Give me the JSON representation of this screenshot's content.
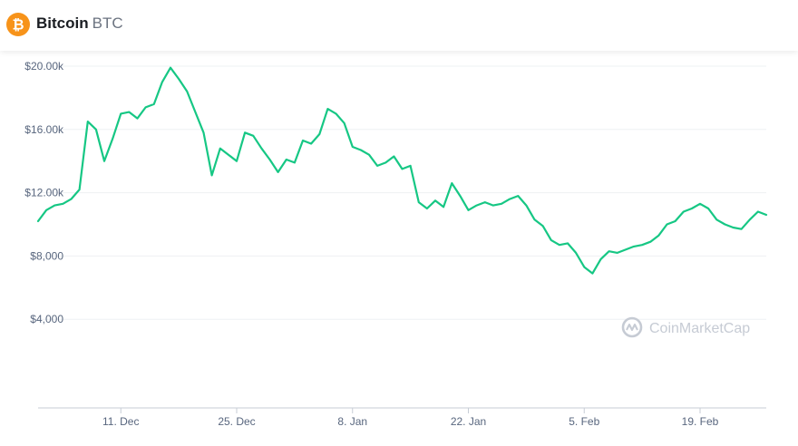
{
  "coin": {
    "name": "Bitcoin",
    "symbol": "BTC",
    "logo_color": "#f7931a",
    "logo_glyph": "₿"
  },
  "watermark": {
    "text": "CoinMarketCap"
  },
  "colors": {
    "line": "#16c784",
    "grid": "#eef0f3",
    "axis_text": "#58667e",
    "watermark": "#c6cbd4"
  },
  "chart_data": {
    "type": "line",
    "title": "",
    "xlabel": "",
    "ylabel": "",
    "ylim": [
      0,
      20000
    ],
    "y_ticks": [
      4000,
      8000,
      12000,
      16000,
      20000
    ],
    "y_tick_labels": [
      "$4,000",
      "$8,000",
      "$12.00k",
      "$16.00k",
      "$20.00k"
    ],
    "x_ticks": [
      "2017-12-11",
      "2017-12-25",
      "2018-01-08",
      "2018-01-22",
      "2018-02-05",
      "2018-02-19"
    ],
    "x_tick_labels": [
      "11. Dec",
      "25. Dec",
      "8. Jan",
      "22. Jan",
      "5. Feb",
      "19. Feb"
    ],
    "grid": "horizontal",
    "series": [
      {
        "x": [
          "2017-12-01",
          "2017-12-02",
          "2017-12-03",
          "2017-12-04",
          "2017-12-05",
          "2017-12-06",
          "2017-12-07",
          "2017-12-08",
          "2017-12-09",
          "2017-12-10",
          "2017-12-11",
          "2017-12-12",
          "2017-12-13",
          "2017-12-14",
          "2017-12-15",
          "2017-12-16",
          "2017-12-17",
          "2017-12-18",
          "2017-12-19",
          "2017-12-20",
          "2017-12-21",
          "2017-12-22",
          "2017-12-23",
          "2017-12-24",
          "2017-12-25",
          "2017-12-26",
          "2017-12-27",
          "2017-12-28",
          "2017-12-29",
          "2017-12-30",
          "2017-12-31",
          "2018-01-01",
          "2018-01-02",
          "2018-01-03",
          "2018-01-04",
          "2018-01-05",
          "2018-01-06",
          "2018-01-07",
          "2018-01-08",
          "2018-01-09",
          "2018-01-10",
          "2018-01-11",
          "2018-01-12",
          "2018-01-13",
          "2018-01-14",
          "2018-01-15",
          "2018-01-16",
          "2018-01-17",
          "2018-01-18",
          "2018-01-19",
          "2018-01-20",
          "2018-01-21",
          "2018-01-22",
          "2018-01-23",
          "2018-01-24",
          "2018-01-25",
          "2018-01-26",
          "2018-01-27",
          "2018-01-28",
          "2018-01-29",
          "2018-01-30",
          "2018-01-31",
          "2018-02-01",
          "2018-02-02",
          "2018-02-03",
          "2018-02-04",
          "2018-02-05",
          "2018-02-06",
          "2018-02-07",
          "2018-02-08",
          "2018-02-09",
          "2018-02-10",
          "2018-02-11",
          "2018-02-12",
          "2018-02-13",
          "2018-02-14",
          "2018-02-15",
          "2018-02-16",
          "2018-02-17",
          "2018-02-18",
          "2018-02-19",
          "2018-02-20",
          "2018-02-21",
          "2018-02-22",
          "2018-02-23",
          "2018-02-24",
          "2018-02-25",
          "2018-02-26",
          "2018-02-27"
        ],
        "values": [
          10200,
          10900,
          11200,
          11300,
          11600,
          12200,
          16500,
          16000,
          14000,
          15400,
          17000,
          17100,
          16700,
          17400,
          17600,
          19000,
          19900,
          19200,
          18400,
          17100,
          15800,
          13100,
          14800,
          14400,
          14000,
          15800,
          15600,
          14800,
          14100,
          13300,
          14100,
          13900,
          15300,
          15100,
          15700,
          17300,
          17000,
          16400,
          14900,
          14700,
          14400,
          13700,
          13900,
          14300,
          13500,
          13700,
          11400,
          11000,
          11500,
          11100,
          12600,
          11800,
          10900,
          11200,
          11400,
          11200,
          11300,
          11600,
          11800,
          11200,
          10300,
          9900,
          9000,
          8700,
          8800,
          8200,
          7300,
          6900,
          7800,
          8300,
          8200,
          8400,
          8600,
          8700,
          8900,
          9300,
          10000,
          10200,
          10800,
          11000,
          11300,
          11000,
          10300,
          10000,
          9800,
          9700,
          10300,
          10800,
          10600
        ]
      }
    ]
  }
}
